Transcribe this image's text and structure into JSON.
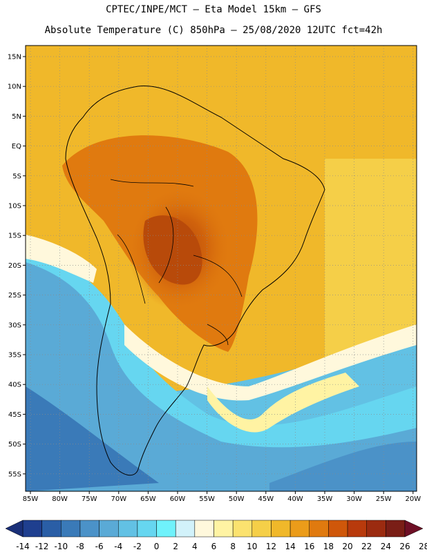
{
  "header": {
    "line1": "CPTEC/INPE/MCT –  Eta Model 15km – GFS",
    "line2": "Absolute Temperature (C) 850hPa – 25/08/2020 12UTC fct=42h"
  },
  "map": {
    "lat_labels": [
      "15N",
      "10N",
      "5N",
      "EQ",
      "5S",
      "10S",
      "15S",
      "20S",
      "25S",
      "30S",
      "35S",
      "40S",
      "45S",
      "50S",
      "55S"
    ],
    "lon_labels": [
      "85W",
      "80W",
      "75W",
      "70W",
      "65W",
      "60W",
      "55W",
      "50W",
      "45W",
      "40W",
      "35W",
      "30W",
      "25W",
      "20W"
    ]
  },
  "colorbar": {
    "labels": [
      "-14",
      "-12",
      "-10",
      "-8",
      "-6",
      "-4",
      "-2",
      "0",
      "2",
      "4",
      "6",
      "8",
      "10",
      "12",
      "14",
      "16",
      "18",
      "20",
      "22",
      "24",
      "26",
      "28"
    ],
    "colors": [
      "#1f3f8f",
      "#2a5ea6",
      "#3a7ab8",
      "#4b92c8",
      "#5aaad6",
      "#62c1e4",
      "#66d6f0",
      "#6ff2fb",
      "#d2f2fa",
      "#fff8dc",
      "#fff3a3",
      "#fbe26f",
      "#f5cf48",
      "#f0b82a",
      "#eb9c1a",
      "#e07a0f",
      "#cf570a",
      "#b83a0c",
      "#9b2b10",
      "#7a1e16"
    ],
    "low_arrow_color": "#1a2f78",
    "high_arrow_color": "#6e0f25"
  }
}
